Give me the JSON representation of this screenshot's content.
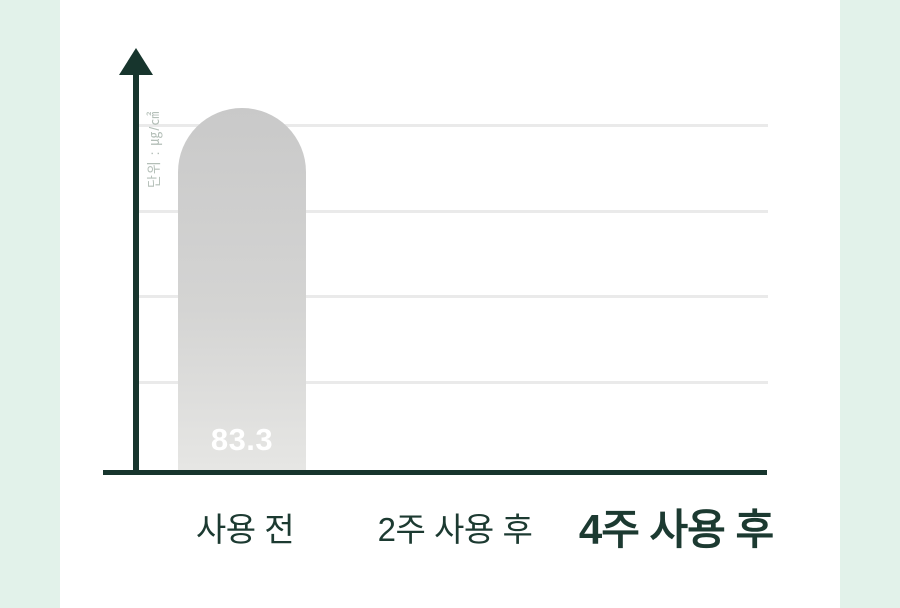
{
  "page": {
    "background_color": "#ffffff",
    "side_strip_color": "#e2f2ea"
  },
  "chart_data": {
    "type": "bar",
    "title": "",
    "unit_label": "단위 : ㎍/㎠",
    "categories": [
      "사용 전",
      "2주 사용 후",
      "4주 사용 후"
    ],
    "values": [
      83.3,
      null,
      null
    ],
    "bar_value_label": "83.3",
    "emphasized_category": "4주 사용 후",
    "ylim": [
      0,
      100
    ],
    "gridline_count": 4,
    "legend": "none",
    "colors": {
      "axis": "#17352d",
      "label_text": "#1c3a31",
      "gridline": "#eaeaea",
      "bar_gradient_top": "#c9c9c9",
      "bar_gradient_bottom": "#e6e6e4",
      "bar_value_text": "#ffffff",
      "unit_label_text": "#b4bfb8"
    }
  }
}
